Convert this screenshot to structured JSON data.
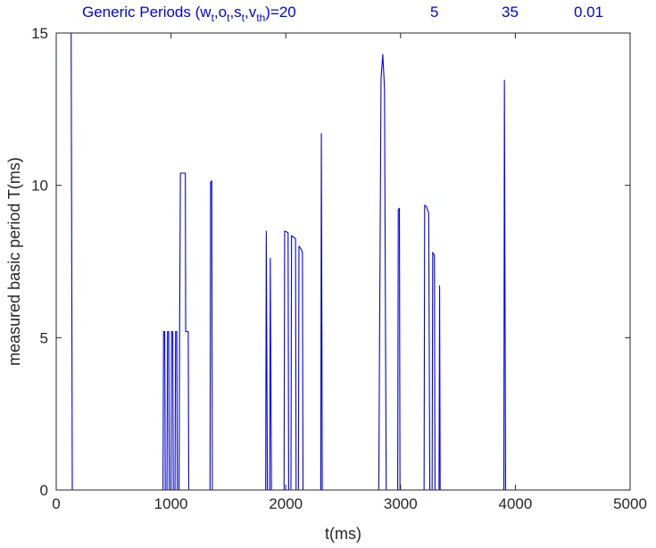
{
  "chart_data": {
    "type": "line",
    "title": {
      "prefix": "Generic Periods (w",
      "parts": [
        "t",
        ",o",
        "t",
        ",s",
        "t",
        ",v",
        "th",
        ")=20"
      ],
      "values": [
        "5",
        "35",
        "0.01"
      ]
    },
    "xlabel": "t(ms)",
    "ylabel": "measured basic period T(ms)",
    "xlim": [
      0,
      5000
    ],
    "ylim": [
      0,
      15
    ],
    "xticks": [
      0,
      1000,
      2000,
      3000,
      4000,
      5000
    ],
    "yticks": [
      0,
      5,
      10,
      15
    ],
    "grid": false,
    "series": [
      {
        "color": "#0000ff",
        "points": [
          [
            0,
            15
          ],
          [
            130,
            15
          ],
          [
            140,
            0
          ],
          [
            930,
            0
          ],
          [
            935,
            5.2
          ],
          [
            945,
            5.2
          ],
          [
            950,
            0
          ],
          [
            965,
            0
          ],
          [
            970,
            5.2
          ],
          [
            980,
            5.2
          ],
          [
            985,
            0
          ],
          [
            1000,
            0
          ],
          [
            1005,
            5.2
          ],
          [
            1015,
            5.2
          ],
          [
            1020,
            0
          ],
          [
            1035,
            0
          ],
          [
            1040,
            5.2
          ],
          [
            1050,
            5.2
          ],
          [
            1055,
            0
          ],
          [
            1070,
            0
          ],
          [
            1075,
            5.2
          ],
          [
            1082,
            10.4
          ],
          [
            1125,
            10.4
          ],
          [
            1128,
            5.2
          ],
          [
            1150,
            5.2
          ],
          [
            1155,
            0
          ],
          [
            1340,
            0
          ],
          [
            1345,
            10.1
          ],
          [
            1355,
            10.15
          ],
          [
            1360,
            0
          ],
          [
            1825,
            0
          ],
          [
            1830,
            8.5
          ],
          [
            1840,
            0
          ],
          [
            1860,
            0
          ],
          [
            1865,
            7.6
          ],
          [
            1875,
            0
          ],
          [
            1985,
            0
          ],
          [
            1990,
            8.5
          ],
          [
            2020,
            8.45
          ],
          [
            2025,
            0
          ],
          [
            2045,
            0
          ],
          [
            2050,
            8.35
          ],
          [
            2085,
            8.25
          ],
          [
            2090,
            0
          ],
          [
            2110,
            0
          ],
          [
            2115,
            8.0
          ],
          [
            2135,
            7.9
          ],
          [
            2145,
            7.8
          ],
          [
            2150,
            0
          ],
          [
            2305,
            0
          ],
          [
            2310,
            11.7
          ],
          [
            2318,
            0
          ],
          [
            2810,
            0
          ],
          [
            2830,
            13.5
          ],
          [
            2845,
            14.3
          ],
          [
            2860,
            13.2
          ],
          [
            2875,
            0
          ],
          [
            2975,
            0
          ],
          [
            2980,
            9.2
          ],
          [
            2990,
            9.25
          ],
          [
            2995,
            0
          ],
          [
            3205,
            0
          ],
          [
            3210,
            9.35
          ],
          [
            3225,
            9.3
          ],
          [
            3245,
            9.1
          ],
          [
            3255,
            0
          ],
          [
            3275,
            0
          ],
          [
            3280,
            7.8
          ],
          [
            3295,
            7.7
          ],
          [
            3300,
            0
          ],
          [
            3335,
            0
          ],
          [
            3340,
            6.7
          ],
          [
            3345,
            0
          ],
          [
            3900,
            0
          ],
          [
            3905,
            13.45
          ],
          [
            3915,
            0
          ],
          [
            4800,
            0
          ]
        ]
      }
    ]
  }
}
